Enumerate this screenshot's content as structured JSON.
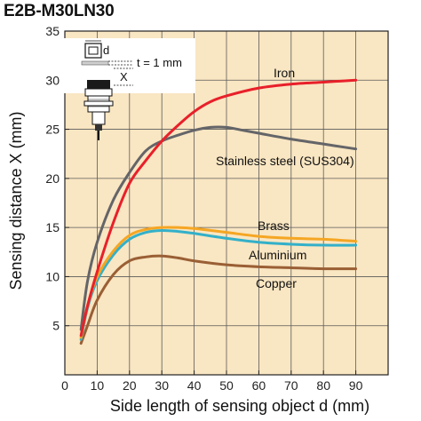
{
  "chart_data": {
    "type": "line",
    "title": "E2B-M30LN30",
    "xlabel": "Side length of sensing object d (mm)",
    "ylabel": "Sensing distance X (mm)",
    "xlim": [
      0,
      100
    ],
    "ylim": [
      0,
      35
    ],
    "xticks": [
      0,
      10,
      20,
      30,
      40,
      50,
      60,
      70,
      80,
      90
    ],
    "yticks": [
      5,
      10,
      15,
      20,
      25,
      30,
      35
    ],
    "grid": true,
    "background": "#f9e6c2",
    "series": [
      {
        "name": "Iron",
        "color": "#e8202a",
        "x": [
          5,
          7,
          10,
          15,
          20,
          25,
          30,
          35,
          40,
          45,
          50,
          60,
          70,
          80,
          90
        ],
        "y": [
          4.0,
          7.0,
          10.5,
          15.5,
          19.5,
          21.8,
          23.8,
          25.4,
          26.8,
          27.8,
          28.4,
          29.2,
          29.6,
          29.8,
          30.0
        ]
      },
      {
        "name": "Stainless steel (SUS304)",
        "color": "#646569",
        "x": [
          5,
          7,
          10,
          15,
          20,
          25,
          30,
          35,
          40,
          45,
          50,
          55,
          60,
          70,
          80,
          90
        ],
        "y": [
          4.6,
          9.5,
          13.5,
          17.8,
          20.6,
          22.8,
          23.8,
          24.4,
          24.9,
          25.2,
          25.2,
          24.9,
          24.6,
          24.0,
          23.5,
          23.0
        ]
      },
      {
        "name": "Brass",
        "color": "#f5a623",
        "x": [
          5,
          7,
          10,
          15,
          20,
          25,
          30,
          35,
          40,
          50,
          60,
          70,
          80,
          90
        ],
        "y": [
          3.8,
          7.0,
          10.0,
          12.6,
          14.2,
          14.8,
          15.0,
          15.0,
          14.9,
          14.5,
          14.1,
          13.9,
          13.8,
          13.6
        ]
      },
      {
        "name": "Aluminium",
        "color": "#33b0c9",
        "x": [
          5,
          7,
          10,
          15,
          20,
          25,
          30,
          35,
          40,
          50,
          60,
          70,
          80,
          90
        ],
        "y": [
          3.6,
          6.8,
          9.6,
          12.2,
          13.8,
          14.5,
          14.7,
          14.6,
          14.4,
          13.9,
          13.5,
          13.3,
          13.2,
          13.2
        ]
      },
      {
        "name": "Copper",
        "color": "#9a5f35",
        "x": [
          5,
          7,
          10,
          15,
          20,
          25,
          30,
          35,
          40,
          50,
          60,
          70,
          80,
          90
        ],
        "y": [
          3.2,
          5.0,
          7.6,
          10.2,
          11.6,
          12.0,
          12.1,
          11.9,
          11.6,
          11.2,
          11.0,
          10.9,
          10.8,
          10.8
        ]
      }
    ],
    "inset": {
      "d_label": "d",
      "x_label": "X",
      "t_label": "t = 1 mm"
    }
  }
}
